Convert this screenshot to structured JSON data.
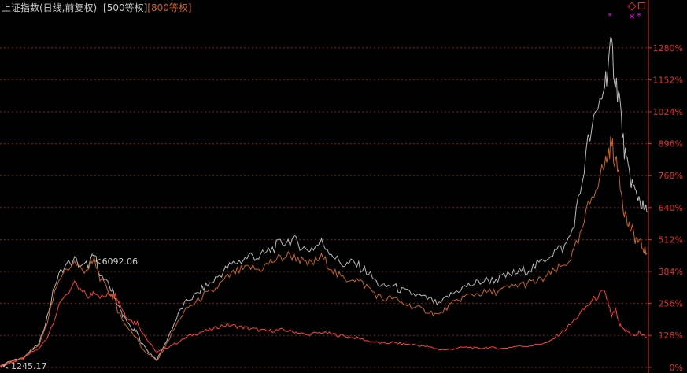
{
  "title": {
    "main": "上证指数(日线,前复权)",
    "series1": "[500等权]",
    "series2": "[800等权]"
  },
  "colors": {
    "background": "#000000",
    "grid": "#8b1a1a",
    "axis": "#e03030",
    "main": "#ff4040",
    "series1": "#b8b8b8",
    "series2": "#c86428",
    "marker": "#ff00ff"
  },
  "icons": [
    "diamond-icon",
    "square-icon"
  ],
  "chart_data": {
    "type": "line",
    "y_axis_unit": "percent",
    "ylim": [
      -10,
      1440
    ],
    "yticks": [
      0,
      128,
      256,
      384,
      512,
      640,
      768,
      896,
      1024,
      1152,
      1280
    ],
    "ytick_labels": [
      "0%",
      "128%",
      "256%",
      "384%",
      "512%",
      "640%",
      "768%",
      "896%",
      "1024%",
      "1152%",
      "1280%"
    ],
    "grid": true,
    "x_index": [
      0,
      10,
      20,
      30,
      40,
      50,
      60,
      70,
      80,
      95,
      105,
      115,
      120,
      130,
      140,
      145,
      150,
      155,
      160,
      170,
      175,
      180,
      190,
      200,
      210,
      220,
      230,
      240,
      250,
      260,
      270,
      280,
      290,
      300,
      310,
      320,
      330,
      340,
      350,
      360,
      370,
      380,
      390,
      400,
      410,
      420,
      430,
      440,
      450,
      460,
      470,
      480,
      490,
      500,
      510,
      520,
      530,
      540,
      550,
      560,
      570,
      580,
      590,
      600,
      610,
      620,
      630,
      640,
      650,
      660,
      670,
      680,
      690,
      700,
      710,
      720,
      730,
      740,
      750,
      760,
      770,
      775,
      780,
      785,
      790,
      795,
      800,
      805,
      810,
      815,
      820,
      825
    ],
    "series": [
      {
        "values": [
          5,
          15,
          25,
          35,
          60,
          75,
          120,
          200,
          280,
          330,
          300,
          280,
          310,
          280,
          290,
          300,
          280,
          240,
          210,
          180,
          180,
          150,
          100,
          60,
          75,
          90,
          105,
          125,
          135,
          145,
          150,
          165,
          170,
          165,
          160,
          155,
          150,
          145,
          148,
          150,
          145,
          140,
          130,
          135,
          140,
          135,
          130,
          125,
          120,
          115,
          105,
          100,
          95,
          100,
          95,
          92,
          90,
          85,
          80,
          72,
          70,
          75,
          80,
          80,
          75,
          80,
          78,
          75,
          80,
          85,
          85,
          88,
          95,
          100,
          125,
          150,
          180,
          215,
          250,
          280,
          300,
          270,
          200,
          230,
          170,
          150,
          145,
          135,
          125,
          140,
          130,
          120
        ]
      },
      {
        "values": [
          5,
          20,
          30,
          40,
          70,
          95,
          200,
          330,
          400,
          430,
          400,
          420,
          450,
          360,
          320,
          300,
          250,
          220,
          190,
          150,
          140,
          100,
          60,
          30,
          90,
          160,
          230,
          270,
          290,
          320,
          340,
          370,
          400,
          420,
          430,
          450,
          440,
          460,
          480,
          500,
          510,
          500,
          470,
          480,
          500,
          470,
          430,
          410,
          420,
          400,
          380,
          340,
          320,
          330,
          310,
          300,
          290,
          280,
          270,
          250,
          280,
          300,
          320,
          330,
          340,
          350,
          350,
          360,
          370,
          380,
          390,
          400,
          420,
          450,
          470,
          480,
          550,
          700,
          900,
          1000,
          1120,
          1200,
          1280,
          1150,
          1080,
          900,
          800,
          750,
          700,
          680,
          640,
          620
        ]
      },
      {
        "values": [
          5,
          18,
          28,
          38,
          65,
          90,
          180,
          300,
          380,
          420,
          390,
          400,
          430,
          340,
          300,
          280,
          230,
          200,
          170,
          130,
          120,
          80,
          50,
          25,
          80,
          140,
          200,
          240,
          260,
          290,
          300,
          330,
          360,
          380,
          390,
          400,
          390,
          410,
          430,
          440,
          450,
          440,
          410,
          420,
          440,
          410,
          370,
          350,
          360,
          340,
          320,
          290,
          270,
          280,
          260,
          250,
          240,
          230,
          220,
          210,
          240,
          260,
          280,
          290,
          295,
          300,
          300,
          310,
          320,
          330,
          335,
          340,
          350,
          370,
          390,
          410,
          450,
          520,
          640,
          730,
          800,
          850,
          900,
          820,
          770,
          650,
          580,
          550,
          520,
          500,
          480,
          460
        ]
      }
    ],
    "annotations": [
      {
        "text": "6092.06",
        "marker": "arrow-left"
      },
      {
        "text": "1245.17",
        "marker": "arrow-left"
      }
    ],
    "markers": [
      "*",
      "×",
      "*"
    ]
  }
}
